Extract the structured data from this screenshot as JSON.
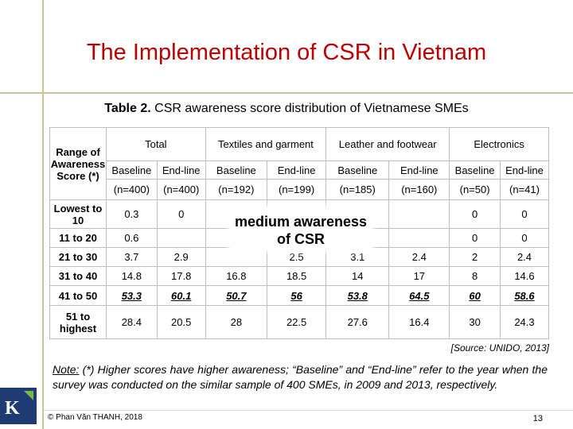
{
  "slide_title": "The Implementation of CSR in Vietnam",
  "caption": {
    "label": "Table 2.",
    "text": " CSR awareness score distribution of Vietnamese SMEs"
  },
  "table": {
    "row_header": "Range of Awareness Score (*)",
    "groups": [
      "Total",
      "Textiles and garment",
      "Leather and footwear",
      "Electronics"
    ],
    "subheaders": [
      "Baseline",
      "End-line",
      "Baseline",
      "End-line",
      "Baseline",
      "End-line",
      "Baseline",
      "End-line"
    ],
    "samples": [
      "(n=400)",
      "(n=400)",
      "(n=192)",
      "(n=199)",
      "(n=185)",
      "(n=160)",
      "(n=50)",
      "(n=41)"
    ],
    "rows": [
      {
        "label": "Lowest to 10",
        "values": [
          "0.3",
          "0",
          "",
          "",
          "",
          "",
          "0",
          "0"
        ]
      },
      {
        "label": "11 to 20",
        "values": [
          "0.6",
          "",
          "",
          "",
          "",
          "",
          "0",
          "0"
        ]
      },
      {
        "label": "21 to 30",
        "values": [
          "3.7",
          "2.9",
          "",
          "2.5",
          "3.1",
          "2.4",
          "2",
          "2.4"
        ]
      },
      {
        "label": "31 to 40",
        "values": [
          "14.8",
          "17.8",
          "16.8",
          "18.5",
          "14",
          "17",
          "8",
          "14.6"
        ]
      },
      {
        "label": "41 to 50",
        "values": [
          "53.3",
          "60.1",
          "50.7",
          "56",
          "53.8",
          "64.5",
          "60",
          "58.6"
        ]
      },
      {
        "label": "51 to highest",
        "values": [
          "28.4",
          "20.5",
          "28",
          "22.5",
          "27.6",
          "16.4",
          "30",
          "24.3"
        ]
      }
    ]
  },
  "callout": {
    "line1": "medium awareness",
    "line2": "of CSR"
  },
  "source": "[Source: UNIDO, 2013]",
  "note": {
    "prefix": "Note:",
    "text": " (*) Higher scores have higher awareness; “Baseline” and “End-line” refer to the year when the survey was conducted on the similar sample of 400 SMEs, in 2009 and 2013, respectively."
  },
  "footer": "© Phan Văn THANH, 2018",
  "page_number": "13",
  "logo_letter": "K",
  "colors": {
    "title": "#c00000",
    "rule": "#c9c39a",
    "logo_bg": "#1f3b73",
    "logo_accent": "#7ab648"
  }
}
